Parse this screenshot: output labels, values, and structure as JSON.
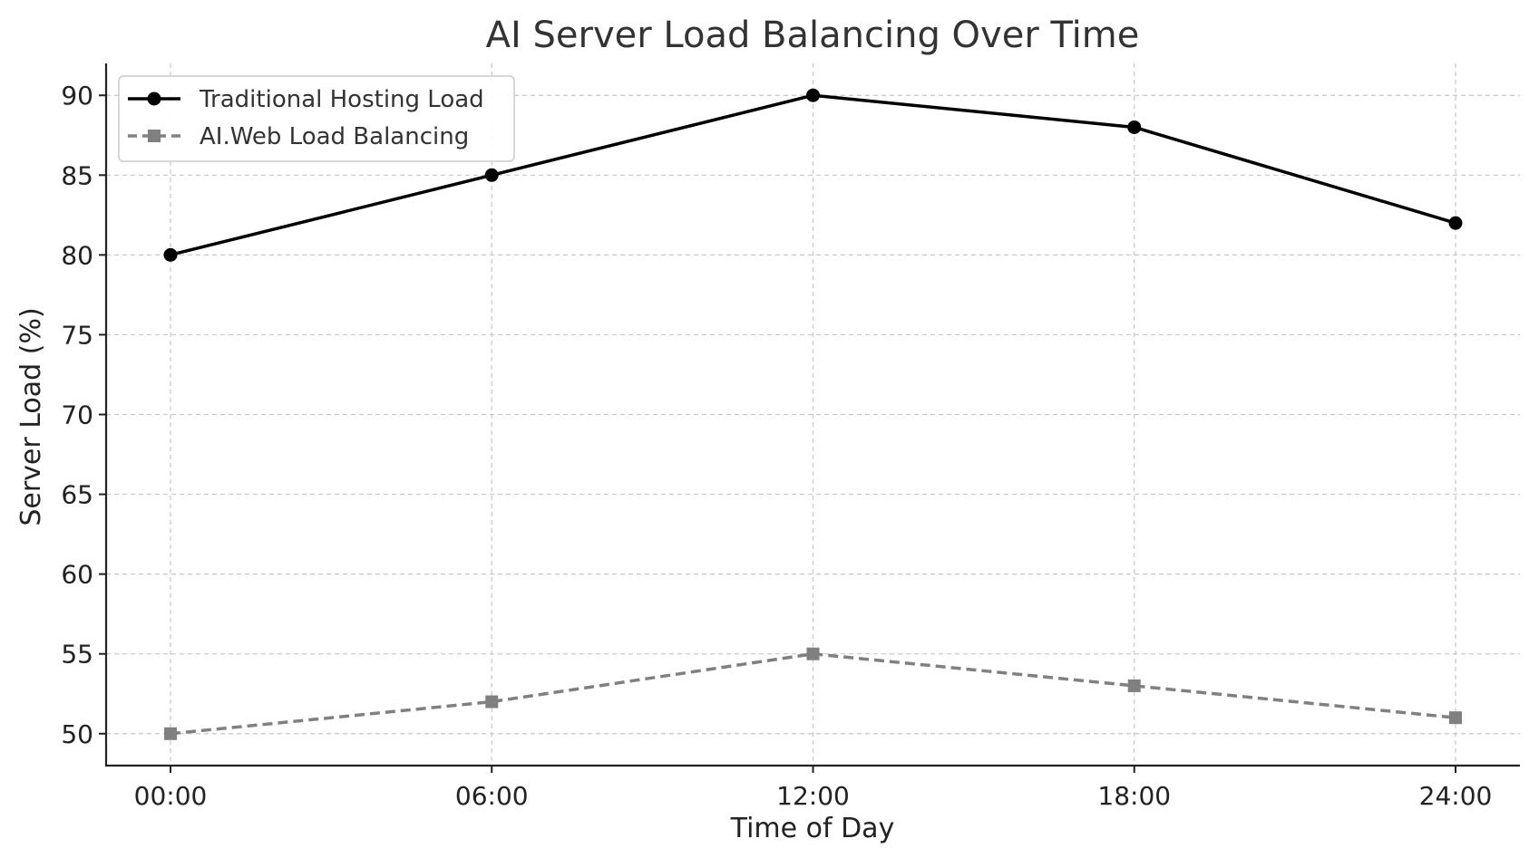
{
  "chart_data": {
    "type": "line",
    "title": "AI Server Load Balancing Over Time",
    "xlabel": "Time of Day",
    "ylabel": "Server Load (%)",
    "categories": [
      "00:00",
      "06:00",
      "12:00",
      "18:00",
      "24:00"
    ],
    "ylim": [
      48,
      92
    ],
    "yticks": [
      50,
      55,
      60,
      65,
      70,
      75,
      80,
      85,
      90
    ],
    "grid": true,
    "legend_position": "top-left",
    "series": [
      {
        "name": "Traditional Hosting Load",
        "values": [
          80,
          85,
          90,
          88,
          82
        ],
        "color": "#000000",
        "line_style": "solid",
        "marker": "circle"
      },
      {
        "name": "AI.Web Load Balancing",
        "values": [
          50,
          52,
          55,
          53,
          51
        ],
        "color": "#808080",
        "line_style": "dashed",
        "marker": "square"
      }
    ]
  }
}
